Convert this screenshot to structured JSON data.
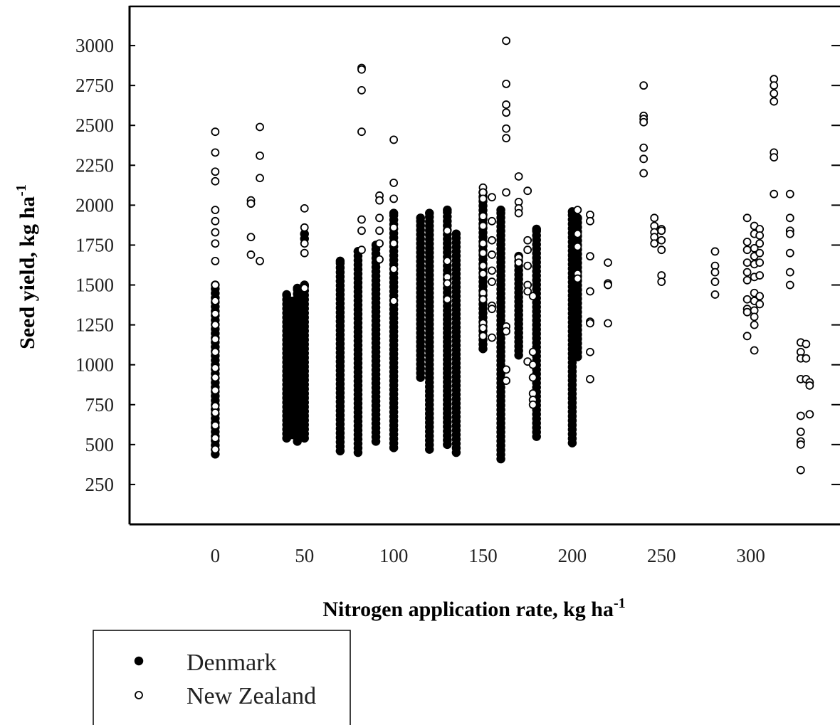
{
  "chart_data": {
    "type": "scatter",
    "xlabel": "Nitrogen application rate, kg ha",
    "xlabel_sup": "-1",
    "ylabel": "Seed yield, kg ha",
    "ylabel_sup": "-1",
    "xlim": [
      -48,
      350
    ],
    "ylim": [
      0,
      3250
    ],
    "x_ticks": [
      0,
      50,
      100,
      150,
      200,
      250,
      300
    ],
    "y_ticks": [
      250,
      500,
      750,
      1000,
      1250,
      1500,
      1750,
      2000,
      2250,
      2500,
      2750,
      3000
    ],
    "grid": false,
    "legend_position": "bottom-left",
    "series": [
      {
        "name": "Denmark",
        "marker": "filled-circle",
        "color": "#000000",
        "groups": [
          {
            "x": 0,
            "y_min": 440,
            "y_max": 1500,
            "extra": [
              720
            ]
          },
          {
            "x": 40,
            "y_min": 540,
            "y_max": 1440
          },
          {
            "x": 42,
            "y_min": 560,
            "y_max": 1400
          },
          {
            "x": 44,
            "y_min": 560,
            "y_max": 1400
          },
          {
            "x": 46,
            "y_min": 520,
            "y_max": 1480
          },
          {
            "x": 50,
            "y_min": 540,
            "y_max": 1500,
            "extra": [
              1820,
              1790
            ]
          },
          {
            "x": 70,
            "y_min": 460,
            "y_max": 1650
          },
          {
            "x": 80,
            "y_min": 450,
            "y_max": 1710
          },
          {
            "x": 90,
            "y_min": 520,
            "y_max": 1750
          },
          {
            "x": 100,
            "y_min": 480,
            "y_max": 1950
          },
          {
            "x": 115,
            "y_min": 920,
            "y_max": 1920
          },
          {
            "x": 120,
            "y_min": 470,
            "y_max": 1950
          },
          {
            "x": 130,
            "y_min": 500,
            "y_max": 1970
          },
          {
            "x": 135,
            "y_min": 450,
            "y_max": 1820
          },
          {
            "x": 150,
            "y_min": 1100,
            "y_max": 2080
          },
          {
            "x": 160,
            "y_min": 410,
            "y_max": 1970
          },
          {
            "x": 170,
            "y_min": 1060,
            "y_max": 1680
          },
          {
            "x": 180,
            "y_min": 550,
            "y_max": 1850
          },
          {
            "x": 200,
            "y_min": 510,
            "y_max": 1960
          },
          {
            "x": 203,
            "y_min": 1050,
            "y_max": 1920
          }
        ]
      },
      {
        "name": "New Zealand",
        "marker": "open-circle",
        "color": "#000000",
        "points": [
          [
            0,
            2460
          ],
          [
            0,
            2330
          ],
          [
            0,
            2210
          ],
          [
            0,
            2150
          ],
          [
            0,
            1970
          ],
          [
            0,
            1900
          ],
          [
            0,
            1830
          ],
          [
            0,
            1760
          ],
          [
            0,
            1650
          ],
          [
            0,
            1500
          ],
          [
            0,
            1400
          ],
          [
            0,
            1320
          ],
          [
            0,
            1250
          ],
          [
            0,
            1160
          ],
          [
            0,
            1080
          ],
          [
            0,
            980
          ],
          [
            0,
            920
          ],
          [
            0,
            840
          ],
          [
            0,
            740
          ],
          [
            0,
            700
          ],
          [
            0,
            620
          ],
          [
            0,
            540
          ],
          [
            0,
            470
          ],
          [
            20,
            2030
          ],
          [
            20,
            2010
          ],
          [
            20,
            1800
          ],
          [
            20,
            1690
          ],
          [
            25,
            2490
          ],
          [
            25,
            2310
          ],
          [
            25,
            2170
          ],
          [
            25,
            1650
          ],
          [
            50,
            1980
          ],
          [
            50,
            1860
          ],
          [
            50,
            1760
          ],
          [
            50,
            1700
          ],
          [
            50,
            1480
          ],
          [
            82,
            2860
          ],
          [
            82,
            2850
          ],
          [
            82,
            2720
          ],
          [
            82,
            2460
          ],
          [
            82,
            1910
          ],
          [
            82,
            1840
          ],
          [
            82,
            1720
          ],
          [
            92,
            2060
          ],
          [
            92,
            2030
          ],
          [
            92,
            1920
          ],
          [
            92,
            1840
          ],
          [
            92,
            1760
          ],
          [
            92,
            1660
          ],
          [
            100,
            2410
          ],
          [
            100,
            2140
          ],
          [
            100,
            2040
          ],
          [
            100,
            1860
          ],
          [
            100,
            1760
          ],
          [
            100,
            1600
          ],
          [
            100,
            1400
          ],
          [
            130,
            1840
          ],
          [
            130,
            1650
          ],
          [
            130,
            1550
          ],
          [
            130,
            1510
          ],
          [
            130,
            1410
          ],
          [
            150,
            2110
          ],
          [
            150,
            2080
          ],
          [
            150,
            2040
          ],
          [
            150,
            1930
          ],
          [
            150,
            1870
          ],
          [
            150,
            1760
          ],
          [
            150,
            1700
          ],
          [
            150,
            1620
          ],
          [
            150,
            1570
          ],
          [
            150,
            1450
          ],
          [
            150,
            1410
          ],
          [
            150,
            1260
          ],
          [
            150,
            1230
          ],
          [
            150,
            1180
          ],
          [
            155,
            2050
          ],
          [
            155,
            1900
          ],
          [
            155,
            1780
          ],
          [
            155,
            1690
          ],
          [
            155,
            1590
          ],
          [
            155,
            1520
          ],
          [
            155,
            1370
          ],
          [
            155,
            1350
          ],
          [
            155,
            1170
          ],
          [
            163,
            3030
          ],
          [
            163,
            2760
          ],
          [
            163,
            2630
          ],
          [
            163,
            2580
          ],
          [
            163,
            2480
          ],
          [
            163,
            2420
          ],
          [
            163,
            2080
          ],
          [
            163,
            1240
          ],
          [
            163,
            1210
          ],
          [
            163,
            970
          ],
          [
            163,
            900
          ],
          [
            170,
            2180
          ],
          [
            170,
            2020
          ],
          [
            170,
            1980
          ],
          [
            170,
            1950
          ],
          [
            170,
            1670
          ],
          [
            170,
            1640
          ],
          [
            175,
            2090
          ],
          [
            175,
            1780
          ],
          [
            175,
            1720
          ],
          [
            175,
            1620
          ],
          [
            175,
            1500
          ],
          [
            175,
            1460
          ],
          [
            175,
            1020
          ],
          [
            178,
            1430
          ],
          [
            178,
            1080
          ],
          [
            178,
            1000
          ],
          [
            178,
            920
          ],
          [
            178,
            820
          ],
          [
            178,
            780
          ],
          [
            178,
            750
          ],
          [
            203,
            1970
          ],
          [
            203,
            1820
          ],
          [
            203,
            1740
          ],
          [
            203,
            1570
          ],
          [
            203,
            1540
          ],
          [
            210,
            1940
          ],
          [
            210,
            1900
          ],
          [
            210,
            1680
          ],
          [
            210,
            1460
          ],
          [
            210,
            1270
          ],
          [
            210,
            1260
          ],
          [
            210,
            1080
          ],
          [
            210,
            910
          ],
          [
            220,
            1640
          ],
          [
            220,
            1510
          ],
          [
            220,
            1500
          ],
          [
            220,
            1260
          ],
          [
            240,
            2750
          ],
          [
            240,
            2560
          ],
          [
            240,
            2540
          ],
          [
            240,
            2520
          ],
          [
            240,
            2360
          ],
          [
            240,
            2290
          ],
          [
            240,
            2200
          ],
          [
            246,
            1920
          ],
          [
            246,
            1870
          ],
          [
            246,
            1830
          ],
          [
            246,
            1800
          ],
          [
            246,
            1760
          ],
          [
            250,
            1850
          ],
          [
            250,
            1840
          ],
          [
            250,
            1780
          ],
          [
            250,
            1720
          ],
          [
            250,
            1560
          ],
          [
            250,
            1520
          ],
          [
            280,
            1710
          ],
          [
            280,
            1620
          ],
          [
            280,
            1580
          ],
          [
            280,
            1520
          ],
          [
            280,
            1440
          ],
          [
            298,
            1920
          ],
          [
            298,
            1770
          ],
          [
            298,
            1720
          ],
          [
            298,
            1640
          ],
          [
            298,
            1580
          ],
          [
            298,
            1530
          ],
          [
            298,
            1410
          ],
          [
            298,
            1350
          ],
          [
            298,
            1330
          ],
          [
            298,
            1180
          ],
          [
            302,
            1870
          ],
          [
            302,
            1820
          ],
          [
            302,
            1730
          ],
          [
            302,
            1680
          ],
          [
            302,
            1630
          ],
          [
            302,
            1550
          ],
          [
            302,
            1450
          ],
          [
            302,
            1400
          ],
          [
            302,
            1340
          ],
          [
            302,
            1300
          ],
          [
            302,
            1250
          ],
          [
            302,
            1090
          ],
          [
            305,
            1850
          ],
          [
            305,
            1810
          ],
          [
            305,
            1760
          ],
          [
            305,
            1700
          ],
          [
            305,
            1640
          ],
          [
            305,
            1560
          ],
          [
            305,
            1430
          ],
          [
            305,
            1380
          ],
          [
            313,
            2790
          ],
          [
            313,
            2750
          ],
          [
            313,
            2700
          ],
          [
            313,
            2650
          ],
          [
            313,
            2330
          ],
          [
            313,
            2300
          ],
          [
            313,
            2070
          ],
          [
            322,
            2070
          ],
          [
            322,
            1920
          ],
          [
            322,
            1840
          ],
          [
            322,
            1820
          ],
          [
            322,
            1700
          ],
          [
            322,
            1580
          ],
          [
            322,
            1500
          ],
          [
            328,
            1140
          ],
          [
            328,
            1080
          ],
          [
            328,
            1040
          ],
          [
            328,
            910
          ],
          [
            328,
            680
          ],
          [
            328,
            580
          ],
          [
            328,
            520
          ],
          [
            328,
            500
          ],
          [
            328,
            340
          ],
          [
            331,
            1130
          ],
          [
            331,
            1040
          ],
          [
            331,
            910
          ],
          [
            333,
            890
          ],
          [
            333,
            870
          ],
          [
            333,
            690
          ]
        ]
      }
    ]
  }
}
